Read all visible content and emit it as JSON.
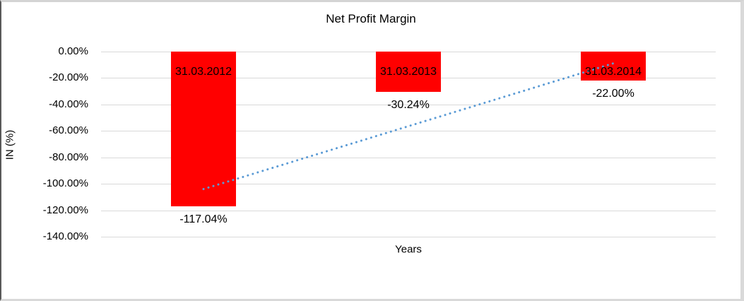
{
  "window": {
    "background": "#FFFFFF",
    "frame_border_color": "#D9D9D9",
    "frame_left_edge_color": "#595959"
  },
  "chart_data": {
    "type": "bar",
    "title": "Net Profit Margin",
    "xlabel": "Years",
    "ylabel": "IN (%)",
    "categories": [
      "31.03.2012",
      "31.03.2013",
      "31.03.2014"
    ],
    "values": [
      -117.04,
      -30.24,
      -22.0
    ],
    "data_labels": [
      "-117.04%",
      "-30.24%",
      "-22.00%"
    ],
    "y_ticks": [
      "0.00%",
      "-20.00%",
      "-40.00%",
      "-60.00%",
      "-80.00%",
      "-100.00%",
      "-120.00%",
      "-140.00%"
    ],
    "ylim": [
      -140,
      0
    ],
    "y_tick_step": 20,
    "grid": true,
    "legend": "none",
    "bar_color": "#FF0000",
    "text_color": "#000000",
    "gridline_color": "#D9D9D9",
    "trendline": {
      "type": "linear",
      "style": "dotted",
      "color": "#5B9BD5",
      "start_pct": -103.95,
      "end_pct": -8.91
    }
  }
}
